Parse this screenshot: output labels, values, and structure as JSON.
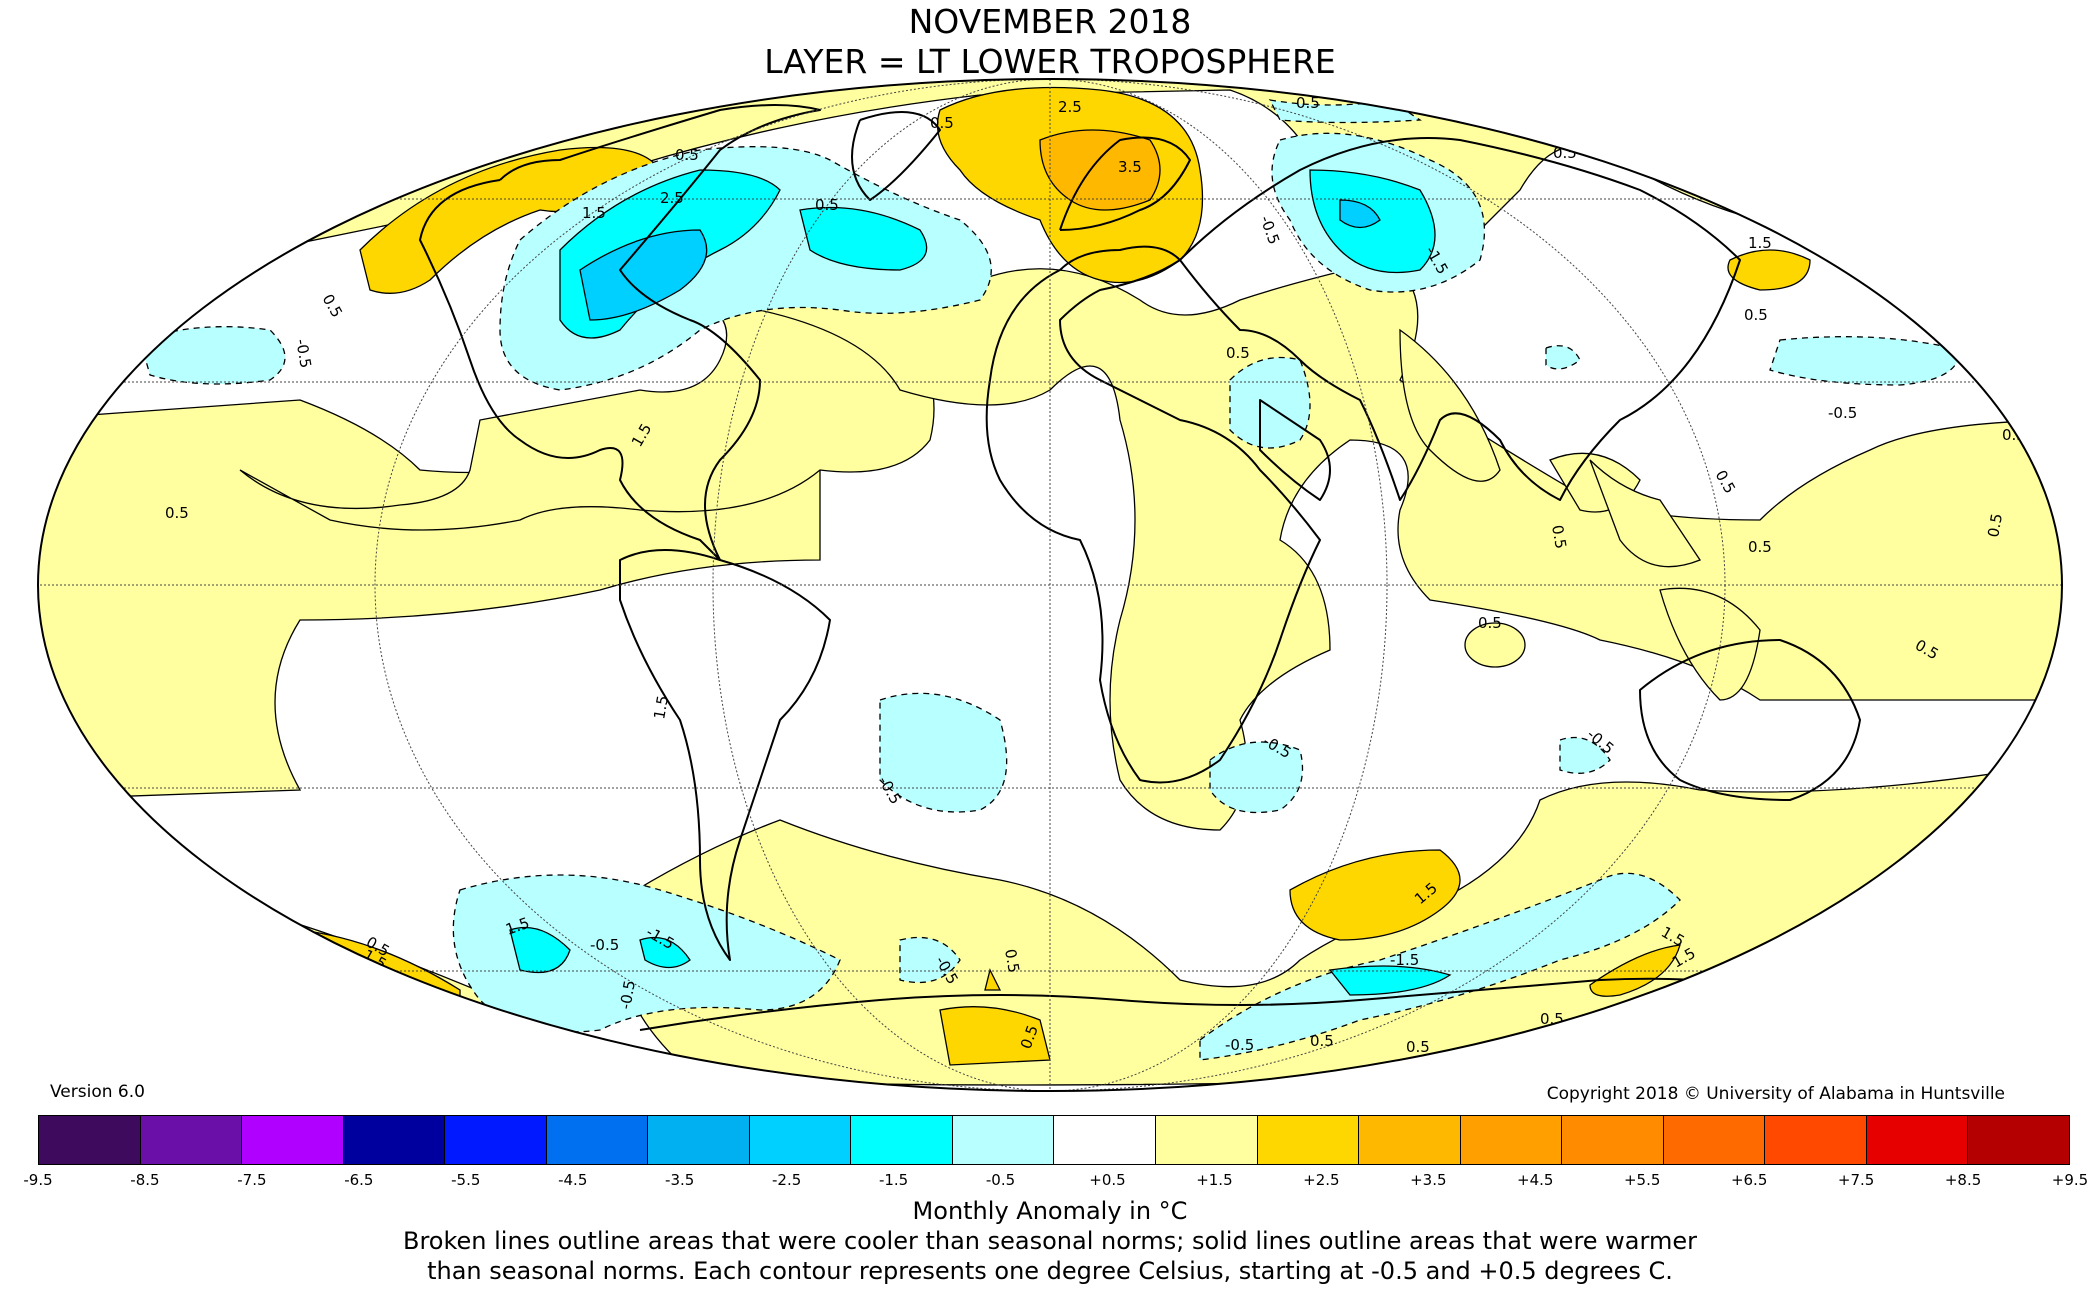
{
  "title_line1": "NOVEMBER 2018",
  "title_line2": "LAYER = LT LOWER TROPOSPHERE",
  "version": "Version 6.0",
  "copyright": "Copyright 2018 © University of Alabama in Huntsville",
  "colorbar": {
    "label": "Monthly Anomaly in °C",
    "tick_labels": [
      "-9.5",
      "-8.5",
      "-7.5",
      "-6.5",
      "-5.5",
      "-4.5",
      "-3.5",
      "-2.5",
      "-1.5",
      "-0.5",
      "+0.5",
      "+1.5",
      "+2.5",
      "+3.5",
      "+4.5",
      "+5.5",
      "+6.5",
      "+7.5",
      "+8.5",
      "+9.5"
    ],
    "colors": [
      "#3d0a5e",
      "#6a0fa8",
      "#b000ff",
      "#00009e",
      "#0019ff",
      "#0070f0",
      "#00b0f0",
      "#00d0ff",
      "#00ffff",
      "#b8ffff",
      "#ffffff",
      "#ffffa0",
      "#ffd700",
      "#ffb800",
      "#ffa000",
      "#ff8c00",
      "#ff6a00",
      "#ff4800",
      "#e60000",
      "#b40000"
    ]
  },
  "caption_line1": "Broken lines outline areas that were cooler than seasonal norms; solid lines outline areas that were warmer",
  "caption_line2": "than seasonal norms. Each contour represents one degree Celsius, starting at -0.5 and +0.5 degrees C.",
  "map": {
    "projection": "Mollweide",
    "colors": {
      "warm_0_5": "#ffffa0",
      "warm_1_5": "#ffd700",
      "warm_2_5": "#ffb800",
      "cool_0_5": "#b8ffff",
      "cool_1_5": "#00ffff",
      "cool_2_5": "#00d0ff",
      "neutral": "#ffffff"
    },
    "contour_labels": [
      "0.5",
      "-0.5",
      "1.5",
      "-1.5",
      "2.5",
      "-2.5",
      "3.5"
    ]
  }
}
